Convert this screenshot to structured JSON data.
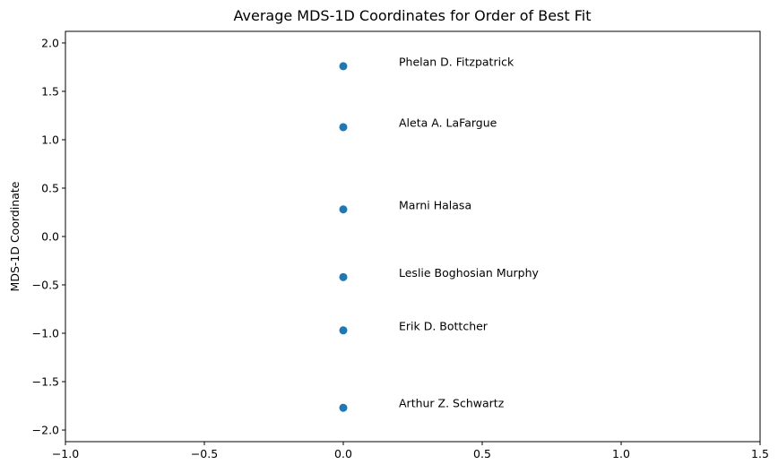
{
  "chart_data": {
    "type": "scatter",
    "title": "Average MDS-1D Coordinates for Order of Best Fit",
    "xlabel": "",
    "ylabel": "MDS-1D Coordinate",
    "xlim": [
      -1.0,
      1.5
    ],
    "ylim": [
      -2.12,
      2.12
    ],
    "xticks": [
      -1.0,
      -0.5,
      0.0,
      0.5,
      1.0,
      1.5
    ],
    "xtick_labels": [
      "−1.0",
      "−0.5",
      "0.0",
      "0.5",
      "1.0",
      "1.5"
    ],
    "yticks": [
      2.0,
      1.5,
      1.0,
      0.5,
      0.0,
      -0.5,
      -1.0,
      -1.5,
      -2.0
    ],
    "ytick_labels": [
      "2.0",
      "1.5",
      "1.0",
      "0.5",
      "0.0",
      "−0.5",
      "−1.0",
      "−1.5",
      "−2.0"
    ],
    "grid": false,
    "point_color": "#1f77b4",
    "points": [
      {
        "label": "Phelan D. Fitzpatrick",
        "x": 0.0,
        "y": 1.76
      },
      {
        "label": "Aleta A. LaFargue",
        "x": 0.0,
        "y": 1.13
      },
      {
        "label": "Marni Halasa",
        "x": 0.0,
        "y": 0.28
      },
      {
        "label": "Leslie Boghosian Murphy",
        "x": 0.0,
        "y": -0.42
      },
      {
        "label": "Erik D. Bottcher",
        "x": 0.0,
        "y": -0.97
      },
      {
        "label": "Arthur Z. Schwartz",
        "x": 0.0,
        "y": -1.77
      }
    ]
  }
}
